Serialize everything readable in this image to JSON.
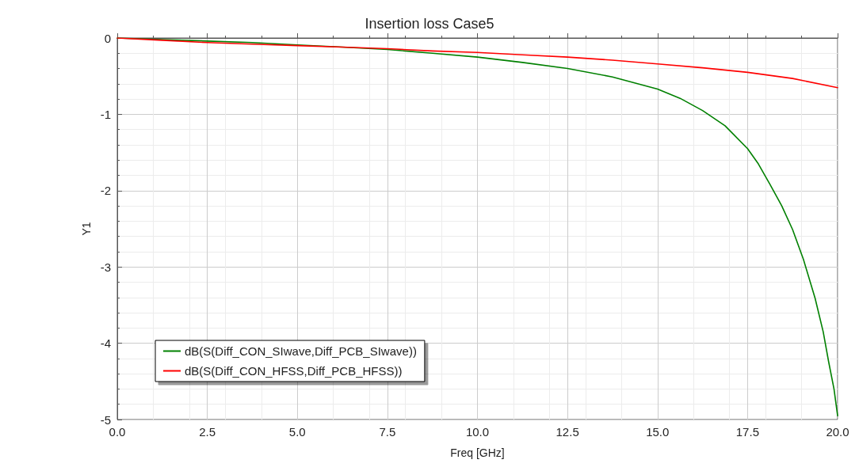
{
  "chart_data": {
    "type": "line",
    "title": "Insertion loss Case5",
    "xlabel": "Freq [GHz]",
    "ylabel": "Y1",
    "series": [
      {
        "name": "dB(S(Diff_CON_SIwave,Diff_PCB_SIwave))",
        "color": "#008000",
        "x": [
          0,
          1.25,
          2.5,
          3.75,
          5,
          6.25,
          7.5,
          8.75,
          10,
          11.25,
          12.5,
          13.75,
          15,
          15.625,
          16.25,
          16.875,
          17.5,
          17.8,
          18.125,
          18.45,
          18.75,
          19.05,
          19.375,
          19.6,
          19.75,
          19.9,
          20
        ],
        "values": [
          0,
          -0.02,
          -0.04,
          -0.06,
          -0.09,
          -0.12,
          -0.15,
          -0.2,
          -0.25,
          -0.32,
          -0.4,
          -0.51,
          -0.67,
          -0.79,
          -0.95,
          -1.15,
          -1.45,
          -1.65,
          -1.92,
          -2.2,
          -2.51,
          -2.9,
          -3.41,
          -3.85,
          -4.24,
          -4.6,
          -4.95
        ]
      },
      {
        "name": "dB(S(Diff_CON_HFSS,Diff_PCB_HFSS))",
        "color": "#ff0000",
        "x": [
          0,
          1.25,
          2.5,
          3.75,
          5,
          6.25,
          7.5,
          8.75,
          10,
          11.25,
          12.5,
          13.75,
          15,
          16.25,
          17.5,
          18.75,
          20
        ],
        "values": [
          0,
          -0.03,
          -0.06,
          -0.08,
          -0.1,
          -0.12,
          -0.14,
          -0.17,
          -0.19,
          -0.22,
          -0.25,
          -0.29,
          -0.34,
          -0.39,
          -0.45,
          -0.53,
          -0.65
        ]
      }
    ],
    "xlim": [
      0,
      20
    ],
    "xticks": [
      {
        "value": 0,
        "label": "0.0"
      },
      {
        "value": 2.5,
        "label": "2.5"
      },
      {
        "value": 5,
        "label": "5.0"
      },
      {
        "value": 7.5,
        "label": "7.5"
      },
      {
        "value": 10,
        "label": "10.0"
      },
      {
        "value": 12.5,
        "label": "12.5"
      },
      {
        "value": 15,
        "label": "15.0"
      },
      {
        "value": 17.5,
        "label": "17.5"
      },
      {
        "value": 20,
        "label": "20.0"
      }
    ],
    "ylim": [
      -5,
      0
    ],
    "yticks": [
      -5,
      -4,
      -3,
      -2,
      -1,
      0
    ],
    "grid": true,
    "legend": "bottom left",
    "marker": "none",
    "line_style": "solid"
  }
}
